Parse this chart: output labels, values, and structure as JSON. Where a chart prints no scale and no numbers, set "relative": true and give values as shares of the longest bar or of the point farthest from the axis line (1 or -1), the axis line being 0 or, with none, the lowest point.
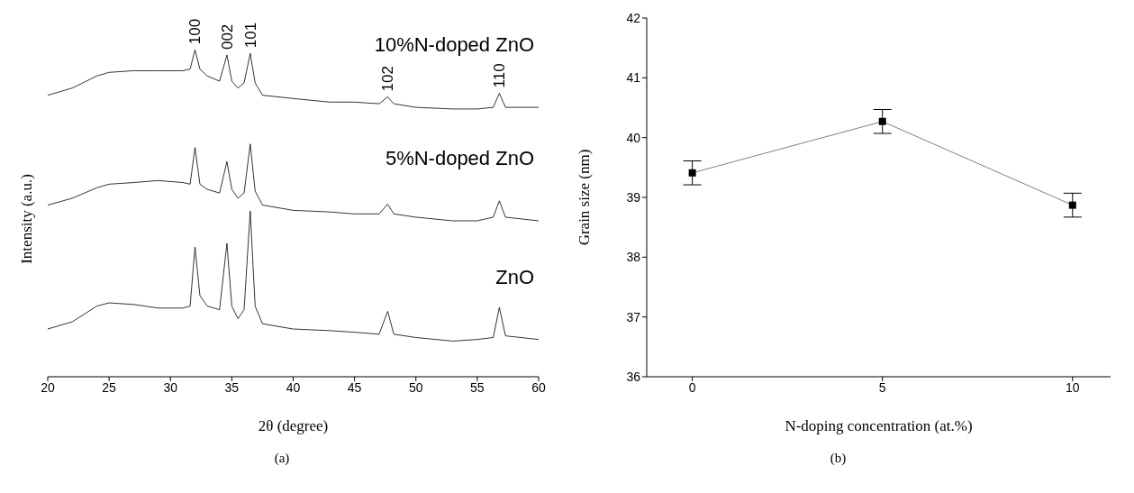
{
  "chart_data": [
    {
      "type": "line",
      "xlabel": "2θ (degree)",
      "ylabel": "Intensity (a.u.)",
      "relative": true,
      "marker": "none",
      "line_style": "solid",
      "grid": false,
      "legend": false,
      "xlim": [
        20,
        60
      ],
      "xticks": [
        20,
        25,
        30,
        35,
        40,
        45,
        50,
        55,
        60
      ],
      "series": [
        {
          "name": "10%N-doped ZnO",
          "color": "#000000",
          "x": [
            20,
            22,
            24,
            25,
            27,
            29,
            31,
            31.6,
            32,
            32.4,
            33,
            34,
            34.6,
            35,
            35.5,
            36,
            36.5,
            36.9,
            37.5,
            40,
            43,
            45,
            47,
            47.7,
            48.2,
            50,
            53,
            55,
            56.3,
            56.8,
            57.3,
            60
          ],
          "values": [
            0.861,
            0.883,
            0.92,
            0.931,
            0.936,
            0.936,
            0.936,
            0.941,
            1,
            0.941,
            0.92,
            0.904,
            0.984,
            0.904,
            0.883,
            0.899,
            0.989,
            0.899,
            0.861,
            0.851,
            0.84,
            0.84,
            0.835,
            0.856,
            0.835,
            0.824,
            0.819,
            0.819,
            0.824,
            0.867,
            0.824,
            0.824
          ]
        },
        {
          "name": "5%N-doped ZnO",
          "color": "#000000",
          "x": [
            20,
            22,
            24,
            25,
            27,
            29,
            31,
            31.6,
            32,
            32.4,
            33,
            34,
            34.6,
            35,
            35.5,
            36,
            36.5,
            36.9,
            37.5,
            40,
            43,
            45,
            47,
            47.7,
            48.2,
            50,
            53,
            55,
            56.3,
            56.8,
            57.3,
            60
          ],
          "values": [
            0.525,
            0.546,
            0.578,
            0.589,
            0.594,
            0.6,
            0.594,
            0.589,
            0.701,
            0.589,
            0.573,
            0.562,
            0.658,
            0.573,
            0.546,
            0.562,
            0.712,
            0.568,
            0.525,
            0.509,
            0.504,
            0.498,
            0.498,
            0.528,
            0.498,
            0.488,
            0.477,
            0.477,
            0.488,
            0.538,
            0.488,
            0.477
          ]
        },
        {
          "name": "ZnO",
          "color": "#000000",
          "x": [
            20,
            22,
            24,
            25,
            27,
            29,
            31,
            31.6,
            32,
            32.4,
            33,
            34,
            34.6,
            35,
            35.5,
            36,
            36.5,
            36.9,
            37.5,
            40,
            43,
            45,
            47,
            47.7,
            48.2,
            50,
            53,
            55,
            56.3,
            56.8,
            57.3,
            60
          ],
          "values": [
            0.146,
            0.168,
            0.216,
            0.226,
            0.221,
            0.21,
            0.21,
            0.216,
            0.397,
            0.248,
            0.216,
            0.205,
            0.408,
            0.216,
            0.178,
            0.205,
            0.507,
            0.216,
            0.162,
            0.146,
            0.141,
            0.136,
            0.13,
            0.2,
            0.13,
            0.12,
            0.109,
            0.114,
            0.12,
            0.212,
            0.125,
            0.114
          ]
        }
      ],
      "annotations": [
        {
          "text": "100",
          "x": 32,
          "y": 1
        },
        {
          "text": "002",
          "x": 34.6,
          "y": 0.984
        },
        {
          "text": "101",
          "x": 36.5,
          "y": 0.989
        },
        {
          "text": "102",
          "x": 47.7,
          "y": 0.856
        },
        {
          "text": "110",
          "x": 56.8,
          "y": 0.867
        },
        "(a)"
      ]
    },
    {
      "type": "line",
      "xlabel": "N-doping concentration (at.%)",
      "ylabel": "Grain size (nm)",
      "marker": "square",
      "line_style": "solid",
      "grid": false,
      "legend": false,
      "xlim": [
        -1.2,
        11
      ],
      "xticks": [
        0,
        5,
        10
      ],
      "ylim": [
        36,
        42
      ],
      "yticks": [
        36,
        37,
        38,
        39,
        40,
        41,
        42
      ],
      "series": [
        {
          "color": "#000000",
          "x": [
            0,
            5,
            10
          ],
          "values": [
            39.41,
            40.27,
            38.87
          ],
          "errors": [
            0.2,
            0.2,
            0.2
          ]
        }
      ],
      "annotations": [
        "(b)"
      ]
    }
  ]
}
